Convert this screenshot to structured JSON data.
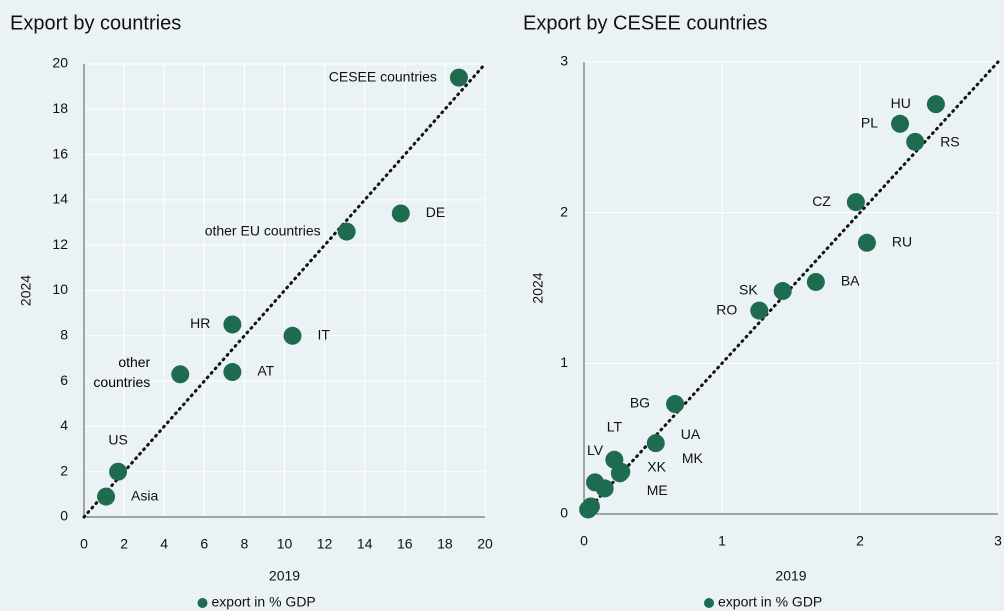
{
  "chart_data": [
    {
      "type": "scatter",
      "title": "Export by countries",
      "x_label": "2019",
      "y_label": "2024",
      "xlim": [
        0,
        20
      ],
      "ylim": [
        0,
        20
      ],
      "xticks": [
        0,
        2,
        4,
        6,
        8,
        10,
        12,
        14,
        16,
        18,
        20
      ],
      "yticks": [
        0,
        2,
        4,
        6,
        8,
        10,
        12,
        14,
        16,
        18,
        20
      ],
      "series": [
        {
          "name": "export in % GDP",
          "color": "#1f6b4f",
          "x": [
            18.7,
            15.8,
            13.1,
            10.4,
            7.4,
            7.4,
            4.8,
            1.7,
            1.1
          ],
          "values": [
            19.4,
            13.4,
            12.6,
            8.0,
            8.5,
            6.4,
            6.3,
            2.0,
            0.9
          ],
          "point_labels": [
            "CESEE countries",
            "DE",
            "other EU countries",
            "IT",
            "HR",
            "AT",
            "other countries",
            "US",
            "Asia"
          ]
        }
      ]
    },
    {
      "type": "scatter",
      "title": "Export by CESEE countries",
      "x_label": "2019",
      "y_label": "2024",
      "xlim": [
        0,
        3
      ],
      "ylim": [
        0,
        3
      ],
      "xticks": [
        0,
        1,
        2,
        3
      ],
      "yticks": [
        0,
        1,
        2,
        3
      ],
      "series": [
        {
          "name": "export in % GDP",
          "color": "#1f6b4f",
          "x": [
            2.55,
            2.29,
            2.4,
            1.97,
            2.05,
            1.68,
            1.44,
            1.27,
            0.66,
            0.52,
            0.22,
            0.08,
            0.27,
            0.15,
            0.26,
            0.03,
            0.05
          ],
          "values": [
            2.72,
            2.59,
            2.47,
            2.07,
            1.8,
            1.54,
            1.48,
            1.35,
            0.73,
            0.47,
            0.36,
            0.21,
            0.28,
            0.17,
            0.27,
            0.03,
            0.05
          ],
          "point_labels": [
            "HU",
            "PL",
            "RS",
            "CZ",
            "RU",
            "BA",
            "SK",
            "RO",
            "BG",
            "UA",
            "LT",
            "LV",
            "XK",
            "ME",
            "MK",
            null,
            null
          ]
        }
      ]
    }
  ]
}
